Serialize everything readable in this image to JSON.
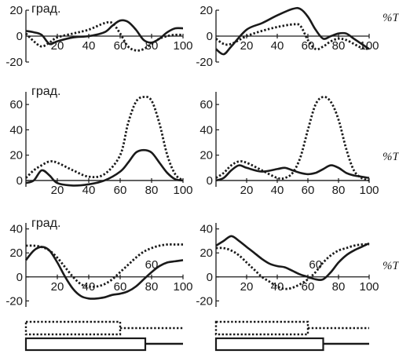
{
  "side_labels": [
    "%T",
    "%T",
    "%T"
  ],
  "chart_data": [
    {
      "type": "line",
      "ylabel": "град.",
      "xticks": [
        20,
        40,
        60,
        80,
        100
      ],
      "yticks": [
        -20,
        0,
        20
      ],
      "xlim": [
        0,
        100
      ],
      "ylim": [
        -20,
        20
      ],
      "annotation": "",
      "series": [
        {
          "style": "solid",
          "x": [
            0,
            5,
            10,
            15,
            20,
            30,
            40,
            50,
            55,
            60,
            65,
            70,
            75,
            80,
            85,
            90,
            95,
            100
          ],
          "y": [
            4,
            3,
            1,
            -6,
            -4,
            -1,
            0,
            3,
            8,
            12,
            11,
            5,
            -3,
            -5,
            -2,
            3,
            6,
            6
          ]
        },
        {
          "style": "dotted",
          "x": [
            0,
            5,
            10,
            15,
            20,
            30,
            40,
            50,
            55,
            60,
            65,
            70,
            75,
            80,
            85,
            90,
            95,
            100
          ],
          "y": [
            2,
            -4,
            -8,
            -5,
            -1,
            2,
            5,
            10,
            10,
            2,
            -8,
            -11,
            -10,
            -6,
            -2,
            0,
            1,
            1
          ]
        }
      ]
    },
    {
      "type": "line",
      "ylabel": "",
      "xticks": [
        20,
        40,
        60,
        80,
        100
      ],
      "yticks": [
        -20,
        0,
        20
      ],
      "xlim": [
        0,
        100
      ],
      "ylim": [
        -20,
        20
      ],
      "annotation": "",
      "series": [
        {
          "style": "solid",
          "x": [
            0,
            5,
            10,
            20,
            30,
            40,
            50,
            55,
            60,
            65,
            70,
            75,
            80,
            85,
            90,
            95,
            100
          ],
          "y": [
            -10,
            -14,
            -8,
            5,
            10,
            16,
            21,
            21,
            15,
            5,
            -2,
            0,
            2,
            2,
            -2,
            -6,
            -10
          ]
        },
        {
          "style": "dotted",
          "x": [
            0,
            5,
            10,
            20,
            30,
            40,
            50,
            55,
            60,
            65,
            70,
            75,
            80,
            85,
            90,
            95,
            100
          ],
          "y": [
            -2,
            -6,
            -6,
            0,
            4,
            7,
            9,
            8,
            -3,
            -10,
            -8,
            -4,
            -2,
            -3,
            -6,
            -9,
            -10
          ]
        }
      ]
    },
    {
      "type": "line",
      "ylabel": "град.",
      "xticks": [
        20,
        40,
        60,
        80,
        100
      ],
      "yticks": [
        0,
        20,
        40,
        60
      ],
      "xlim": [
        0,
        100
      ],
      "ylim": [
        -5,
        70
      ],
      "annotation": "",
      "series": [
        {
          "style": "solid",
          "x": [
            0,
            5,
            10,
            15,
            20,
            30,
            40,
            50,
            60,
            65,
            70,
            75,
            80,
            85,
            90,
            95,
            100
          ],
          "y": [
            -2,
            0,
            8,
            4,
            -2,
            -4,
            -3,
            0,
            7,
            14,
            22,
            24,
            22,
            14,
            6,
            1,
            0
          ]
        },
        {
          "style": "dotted",
          "x": [
            0,
            5,
            10,
            15,
            20,
            30,
            40,
            50,
            60,
            65,
            70,
            75,
            80,
            85,
            90,
            95,
            100
          ],
          "y": [
            2,
            8,
            12,
            15,
            14,
            8,
            3,
            5,
            20,
            45,
            62,
            66,
            63,
            45,
            20,
            5,
            0
          ]
        }
      ]
    },
    {
      "type": "line",
      "ylabel": "",
      "xticks": [
        20,
        40,
        60,
        80,
        100
      ],
      "yticks": [
        0,
        20,
        40,
        60
      ],
      "xlim": [
        0,
        100
      ],
      "ylim": [
        -5,
        70
      ],
      "annotation": "",
      "series": [
        {
          "style": "solid",
          "x": [
            0,
            5,
            10,
            15,
            20,
            30,
            40,
            45,
            50,
            55,
            60,
            65,
            70,
            75,
            80,
            85,
            90,
            95,
            100
          ],
          "y": [
            0,
            2,
            8,
            12,
            10,
            7,
            9,
            10,
            8,
            6,
            5,
            6,
            9,
            12,
            10,
            6,
            4,
            3,
            2
          ]
        },
        {
          "style": "dotted",
          "x": [
            0,
            5,
            10,
            15,
            20,
            30,
            40,
            45,
            50,
            55,
            60,
            65,
            70,
            75,
            80,
            85,
            90,
            95,
            100
          ],
          "y": [
            2,
            6,
            12,
            15,
            14,
            8,
            2,
            2,
            6,
            18,
            40,
            60,
            66,
            62,
            48,
            25,
            8,
            2,
            0
          ]
        }
      ]
    },
    {
      "type": "line",
      "ylabel": "град.",
      "xticks": [
        20,
        40,
        60,
        80,
        100
      ],
      "yticks": [
        -20,
        0,
        20,
        40
      ],
      "xlim": [
        0,
        100
      ],
      "ylim": [
        -25,
        45
      ],
      "annotation": "60",
      "series": [
        {
          "style": "solid",
          "x": [
            0,
            5,
            10,
            15,
            20,
            25,
            30,
            35,
            40,
            45,
            50,
            55,
            60,
            65,
            70,
            75,
            80,
            85,
            90,
            95,
            100
          ],
          "y": [
            14,
            22,
            25,
            22,
            12,
            0,
            -10,
            -16,
            -18,
            -18,
            -17,
            -15,
            -14,
            -12,
            -8,
            -2,
            4,
            9,
            12,
            13,
            14
          ]
        },
        {
          "style": "dotted",
          "x": [
            0,
            5,
            10,
            15,
            20,
            25,
            30,
            35,
            40,
            45,
            50,
            55,
            60,
            65,
            70,
            75,
            80,
            85,
            90,
            95,
            100
          ],
          "y": [
            26,
            26,
            25,
            22,
            16,
            8,
            0,
            -6,
            -8,
            -8,
            -6,
            -2,
            4,
            10,
            16,
            21,
            24,
            26,
            27,
            27,
            27
          ]
        }
      ]
    },
    {
      "type": "line",
      "ylabel": "",
      "xticks": [
        20,
        40,
        60,
        80,
        100
      ],
      "yticks": [
        -20,
        0,
        20,
        40
      ],
      "xlim": [
        0,
        100
      ],
      "ylim": [
        -25,
        45
      ],
      "annotation": "60",
      "series": [
        {
          "style": "solid",
          "x": [
            0,
            5,
            10,
            15,
            20,
            25,
            30,
            35,
            40,
            45,
            50,
            55,
            60,
            65,
            70,
            75,
            80,
            85,
            90,
            95,
            100
          ],
          "y": [
            26,
            30,
            34,
            30,
            25,
            20,
            15,
            11,
            9,
            8,
            5,
            2,
            0,
            -2,
            -2,
            4,
            12,
            18,
            22,
            25,
            28
          ]
        },
        {
          "style": "dotted",
          "x": [
            0,
            5,
            10,
            15,
            20,
            25,
            30,
            35,
            40,
            45,
            50,
            55,
            60,
            65,
            70,
            75,
            80,
            85,
            90,
            95,
            100
          ],
          "y": [
            24,
            24,
            22,
            18,
            12,
            6,
            0,
            -4,
            -8,
            -10,
            -9,
            -6,
            -2,
            4,
            12,
            18,
            22,
            24,
            26,
            27,
            27
          ]
        }
      ]
    }
  ],
  "phase_bars": [
    {
      "dotted_box_end": 60,
      "solid_box_end": 76
    },
    {
      "dotted_box_end": 60,
      "solid_box_end": 70
    }
  ]
}
